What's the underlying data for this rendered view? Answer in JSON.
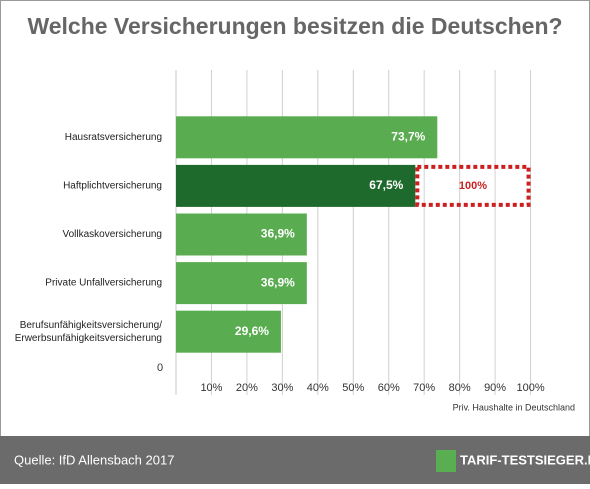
{
  "chart_data": {
    "type": "hbar",
    "title": "Welche Versicherungen besitzen die Deutschen?",
    "categories": [
      "Hausratsversicherung",
      "Haftplichtversicherung",
      "Vollkaskoversicherung",
      "Private Unfallversicherung",
      "Berufsunfähigkeitsversicherung/\nErwerbsunfähigkeitsversicherung"
    ],
    "values": [
      73.7,
      67.5,
      36.9,
      36.9,
      29.6
    ],
    "value_labels": [
      "73,7%",
      "67,5%",
      "36,9%",
      "36,9%",
      "29,6%"
    ],
    "colors": [
      "#59ad50",
      "#1e6a2c",
      "#59ad50",
      "#59ad50",
      "#59ad50"
    ],
    "annotation": {
      "category": "Haftplichtversicherung",
      "value": 100,
      "label": "100%",
      "color": "#cc1f1f"
    },
    "xlim": [
      0,
      110
    ],
    "xticks": [
      0,
      {
        "value": 10,
        "label": "10%"
      },
      {
        "value": 20,
        "label": "20%"
      },
      {
        "value": 30,
        "label": "30%"
      },
      {
        "value": 40,
        "label": "40%"
      },
      {
        "value": 50,
        "label": "50%"
      },
      {
        "value": 60,
        "label": "60%"
      },
      {
        "value": 70,
        "label": "70%"
      },
      {
        "value": 80,
        "label": "80%"
      },
      {
        "value": 90,
        "label": "90%"
      },
      {
        "value": 100,
        "label": "100%"
      }
    ],
    "x_label": "Priv. Haushalte in Deutschland",
    "grid": true,
    "source": "Quelle: IfD Allensbach 2017",
    "logo": "TARIF-TESTSIEGER.DE"
  }
}
